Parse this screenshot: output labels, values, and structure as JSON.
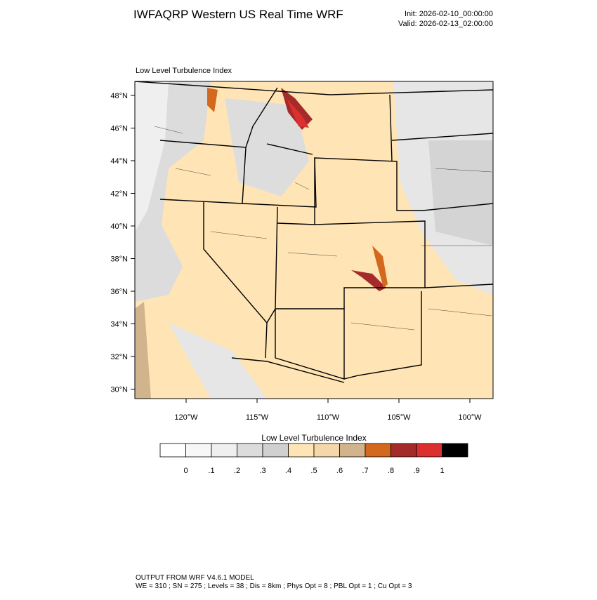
{
  "header": {
    "title": "IWFAQRP Western US Real Time WRF",
    "init": "Init: 2026-02-10_00:00:00",
    "valid": "Valid: 2026-02-13_02:00:00"
  },
  "map": {
    "subtitle": "Low Level Turbulence Index",
    "lat_labels": [
      "48°N",
      "46°N",
      "44°N",
      "42°N",
      "40°N",
      "38°N",
      "36°N",
      "34°N",
      "32°N",
      "30°N"
    ],
    "lon_labels": [
      "120°W",
      "115°W",
      "110°W",
      "105°W",
      "100°W"
    ]
  },
  "colorbar": {
    "title": "Low Level Turbulence Index",
    "colors": [
      "#ffffff",
      "#f7f7f7",
      "#efefef",
      "#dcdcdc",
      "#d0d0d0",
      "#ffe4b5",
      "#f5d7aa",
      "#d2b48c",
      "#d2691e",
      "#a52a2a",
      "#dc2f2f",
      "#000000"
    ],
    "labels": [
      "0",
      ".1",
      ".2",
      ".3",
      ".4",
      ".5",
      ".6",
      ".7",
      ".8",
      ".9",
      "1"
    ]
  },
  "footer": {
    "lines": [
      "OUTPUT FROM WRF V4.6.1 MODEL",
      "WE = 310 ; SN = 275 ; Levels = 38 ; Dis = 8km ; Phys Opt = 8 ; PBL Opt = 1 ; Cu Opt = 3"
    ]
  }
}
